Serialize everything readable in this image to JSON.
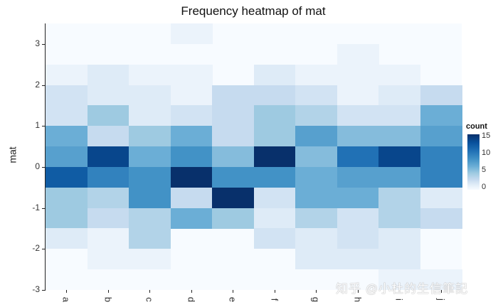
{
  "chart_data": {
    "type": "heatmap",
    "title": "Frequency heatmap of mat",
    "xlabel": "",
    "ylabel": "mat",
    "x_categories": [
      "a",
      "b",
      "c",
      "d",
      "e",
      "f",
      "g",
      "h",
      "i",
      "j"
    ],
    "y_bins_center": [
      3.25,
      2.75,
      2.25,
      1.75,
      1.25,
      0.75,
      0.25,
      -0.25,
      -0.75,
      -1.25,
      -1.75,
      -2.25,
      -2.75
    ],
    "bin_width": 0.5,
    "y_ticks": [
      3,
      2,
      1,
      0,
      -1,
      -2,
      -3
    ],
    "ylim": [
      -3,
      3.5
    ],
    "legend": {
      "title": "count",
      "ticks": [
        15,
        10,
        5,
        0
      ],
      "range": [
        0,
        15
      ],
      "palette": [
        "#f7fbff",
        "#08306b"
      ],
      "position": "right"
    },
    "grid": false,
    "values": {
      "a": [
        0,
        0,
        1,
        3,
        3,
        8,
        9,
        13,
        6,
        6,
        2,
        0,
        0
      ],
      "b": [
        0,
        0,
        2,
        2,
        6,
        4,
        14,
        11,
        5,
        4,
        1,
        1,
        0
      ],
      "c": [
        0,
        0,
        1,
        2,
        2,
        6,
        8,
        10,
        10,
        5,
        5,
        1,
        0
      ],
      "d": [
        1,
        0,
        1,
        1,
        3,
        8,
        10,
        15,
        4,
        8,
        0,
        0,
        0
      ],
      "e": [
        0,
        0,
        0,
        4,
        4,
        4,
        7,
        10,
        15,
        6,
        0,
        0,
        0
      ],
      "f": [
        0,
        0,
        2,
        4,
        6,
        6,
        15,
        10,
        3,
        2,
        3,
        0,
        0
      ],
      "g": [
        0,
        0,
        1,
        3,
        5,
        9,
        7,
        8,
        8,
        5,
        2,
        2,
        0
      ],
      "h": [
        0,
        1,
        1,
        1,
        3,
        7,
        12,
        9,
        8,
        3,
        3,
        2,
        0
      ],
      "i": [
        0,
        0,
        1,
        2,
        3,
        7,
        14,
        9,
        5,
        5,
        2,
        2,
        1
      ],
      "j": [
        0,
        0,
        0,
        4,
        8,
        9,
        11,
        11,
        2,
        4,
        0,
        0,
        1
      ]
    }
  },
  "watermark": "知乎 @小杜的生信筆記"
}
